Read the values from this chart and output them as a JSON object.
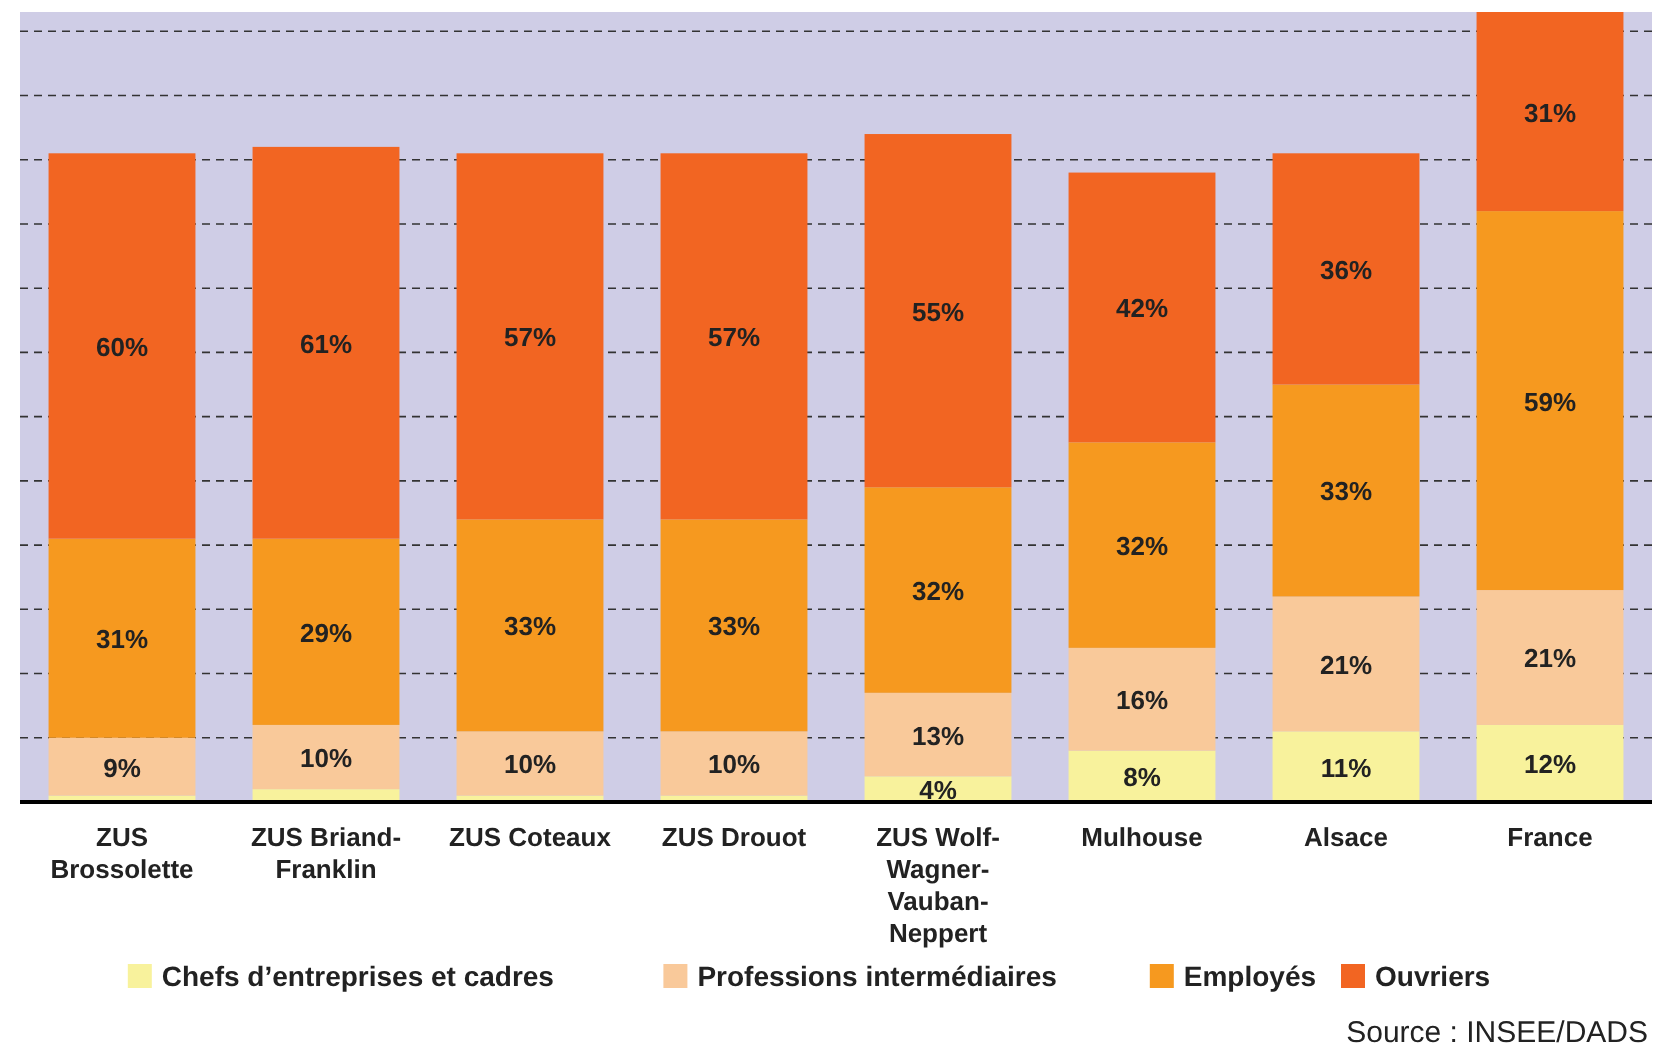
{
  "chart_data": {
    "type": "bar",
    "stacked": true,
    "categories": [
      "ZUS Brossolette",
      "ZUS Briand-Franklin",
      "ZUS Coteaux",
      "ZUS Drouot",
      "ZUS Wolf-Wagner-Vauban-Neppert",
      "Mulhouse",
      "Alsace",
      "France"
    ],
    "series": [
      {
        "name": "Chefs d’entreprises et cadres",
        "color": "#f8f29c",
        "values": [
          1,
          2,
          1,
          1,
          4,
          8,
          11,
          12
        ],
        "value_labels": [
          null,
          null,
          null,
          null,
          "4%",
          "8%",
          "11%",
          "12%"
        ]
      },
      {
        "name": "Professions intermédiaires",
        "color": "#f9c99a",
        "values": [
          9,
          10,
          10,
          10,
          13,
          16,
          21,
          21
        ],
        "value_labels": [
          "9%",
          "10%",
          "10%",
          "10%",
          "13%",
          "16%",
          "21%",
          "21%"
        ]
      },
      {
        "name": "Employés",
        "color": "#f6991f",
        "values": [
          31,
          29,
          33,
          33,
          32,
          32,
          33,
          59
        ],
        "value_labels": [
          "31%",
          "29%",
          "33%",
          "33%",
          "32%",
          "32%",
          "33%",
          "59%"
        ]
      },
      {
        "name": "Ouvriers",
        "color": "#f26522",
        "values": [
          60,
          61,
          57,
          57,
          55,
          42,
          36,
          31
        ],
        "value_labels": [
          "60%",
          "61%",
          "57%",
          "57%",
          "55%",
          "42%",
          "36%",
          "31%"
        ]
      }
    ],
    "ylim": [
      0,
      123
    ],
    "yticks": [
      {
        "value": 0,
        "label": null
      },
      {
        "value": 10,
        "label": null
      },
      {
        "value": 20,
        "label": null
      },
      {
        "value": 30,
        "label": null
      },
      {
        "value": 40,
        "label": null
      },
      {
        "value": 50,
        "label": null
      },
      {
        "value": 60,
        "label": null
      },
      {
        "value": 70,
        "label": null
      },
      {
        "value": 80,
        "label": null
      },
      {
        "value": 90,
        "label": null
      },
      {
        "value": 100,
        "label": null
      },
      {
        "value": 110,
        "label": null
      },
      {
        "value": 120,
        "label": null
      }
    ],
    "grid": "y",
    "tick_labels": "x",
    "legend": "bottom",
    "annotations": [
      "Source : INSEE/DADS"
    ]
  }
}
